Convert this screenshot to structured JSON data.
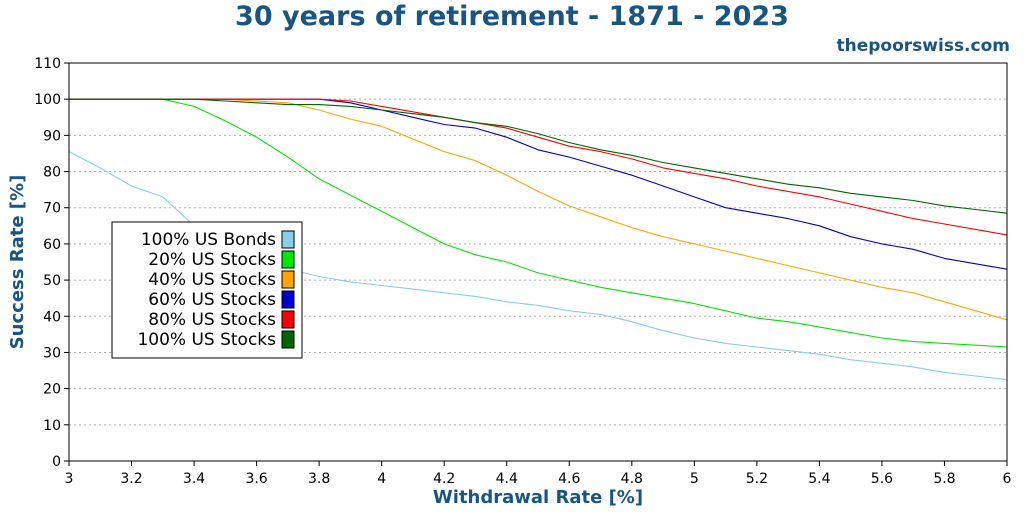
{
  "title": "30 years of retirement - 1871 - 2023",
  "watermark": "thepoorswiss.com",
  "colors": {
    "title": "#1a5480"
  },
  "chart_data": {
    "type": "line",
    "title": "30 years of retirement - 1871 - 2023",
    "xlabel": "Withdrawal Rate [%]",
    "ylabel": "Success Rate [%]",
    "xlim": [
      3,
      6
    ],
    "ylim": [
      0,
      110
    ],
    "xticks": [
      "3",
      "3.2",
      "3.4",
      "3.6",
      "3.8",
      "4",
      "4.2",
      "4.4",
      "4.6",
      "4.8",
      "5",
      "5.2",
      "5.4",
      "5.6",
      "5.8",
      "6"
    ],
    "yticks": [
      "0",
      "10",
      "20",
      "30",
      "40",
      "50",
      "60",
      "70",
      "80",
      "90",
      "100",
      "110"
    ],
    "grid": "horizontal dotted",
    "legend_position": "center-left",
    "x": [
      3.0,
      3.1,
      3.2,
      3.3,
      3.4,
      3.5,
      3.6,
      3.7,
      3.8,
      3.9,
      4.0,
      4.1,
      4.2,
      4.3,
      4.4,
      4.5,
      4.6,
      4.7,
      4.8,
      4.9,
      5.0,
      5.1,
      5.2,
      5.3,
      5.4,
      5.5,
      5.6,
      5.7,
      5.8,
      5.9,
      6.0
    ],
    "series": [
      {
        "name": "100% US Bonds",
        "color": "#87ceeb",
        "values": [
          85.5,
          81,
          76,
          73,
          65,
          61,
          56,
          53,
          51,
          49.5,
          48.5,
          47.5,
          46.5,
          45.5,
          44,
          43,
          41.5,
          40.5,
          38.5,
          36,
          34,
          32.5,
          31.5,
          30.5,
          29.5,
          28,
          27,
          26,
          24.5,
          23.5,
          22.5
        ]
      },
      {
        "name": "20% US Stocks",
        "color": "#00e600",
        "values": [
          100,
          100,
          100,
          100,
          98,
          94,
          89.5,
          84,
          78,
          73.5,
          69,
          64.5,
          60,
          57,
          55,
          52,
          50,
          48,
          46.5,
          45,
          43.5,
          41.5,
          39.5,
          38.5,
          37,
          35.5,
          34,
          33,
          32.5,
          32,
          31.5
        ]
      },
      {
        "name": "40% US Stocks",
        "color": "#ffa500",
        "values": [
          100,
          100,
          100,
          100,
          100,
          100,
          99.5,
          99,
          97,
          94.5,
          92.5,
          89,
          85.5,
          83,
          79,
          74.5,
          70.5,
          67.5,
          64.5,
          62,
          60,
          58,
          56,
          54,
          52,
          50,
          48,
          46.5,
          44,
          41.5,
          39
        ]
      },
      {
        "name": "60% US Stocks",
        "color": "#0000cc",
        "values": [
          100,
          100,
          100,
          100,
          100,
          100,
          100,
          100,
          100,
          99,
          97,
          95,
          93,
          92,
          89.5,
          86,
          84,
          81.5,
          79,
          76,
          73,
          70,
          68.5,
          67,
          65,
          62,
          60,
          58.5,
          56,
          54.5,
          53
        ]
      },
      {
        "name": "80% US Stocks",
        "color": "#ff0000",
        "values": [
          100,
          100,
          100,
          100,
          100,
          100,
          100,
          100,
          100,
          99.5,
          98,
          96.5,
          95,
          93.5,
          92,
          89.5,
          87,
          85.5,
          83.5,
          81,
          79.5,
          78,
          76,
          74.5,
          73,
          71,
          69,
          67,
          65.5,
          64,
          62.5
        ]
      },
      {
        "name": "100% US Stocks",
        "color": "#006400",
        "values": [
          100,
          100,
          100,
          100,
          100,
          99.5,
          99,
          98.5,
          98.5,
          98,
          97,
          96,
          95,
          93.5,
          92.5,
          90.5,
          88,
          86,
          84.5,
          82.5,
          81,
          79.5,
          78,
          76.5,
          75.5,
          74,
          73,
          72,
          70.5,
          69.5,
          68.5
        ]
      }
    ]
  }
}
